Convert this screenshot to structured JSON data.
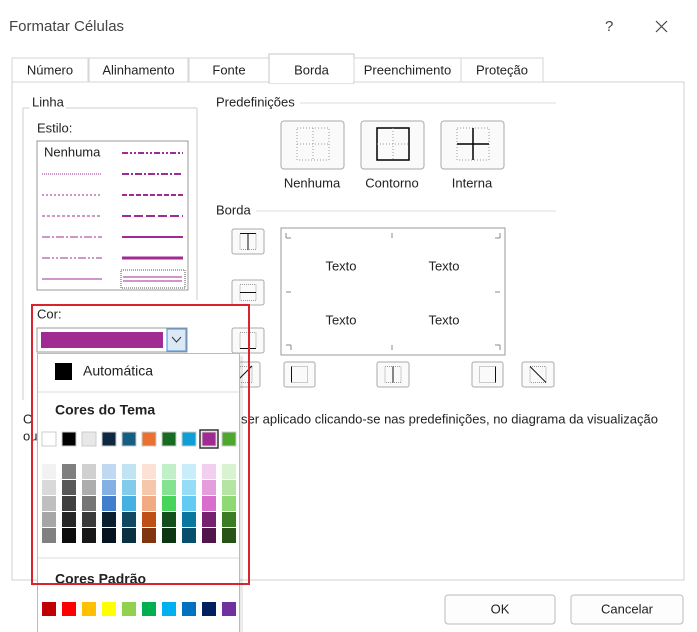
{
  "window": {
    "title": "Formatar Células",
    "help": "?"
  },
  "tabs": [
    "Número",
    "Alinhamento",
    "Fonte",
    "Borda",
    "Preenchimento",
    "Proteção"
  ],
  "line_group": {
    "title": "Linha",
    "style_label": "Estilo:",
    "none_style": "Nenhuma",
    "color_label": "Cor:"
  },
  "presets": {
    "title": "Predefinições",
    "items": [
      "Nenhuma",
      "Contorno",
      "Interna"
    ]
  },
  "border": {
    "title": "Borda",
    "preview": [
      "Texto",
      "Texto",
      "Texto",
      "Texto"
    ]
  },
  "hint": {
    "start": "O",
    "rest": "ser aplicado clicando-se nas predefinições, no diagrama da visualização",
    "line2": "ou"
  },
  "color_menu": {
    "automatic": "Automática",
    "theme": "Cores do Tema",
    "standard": "Cores Padrão"
  },
  "buttons": {
    "ok": "OK",
    "cancel": "Cancelar"
  }
}
